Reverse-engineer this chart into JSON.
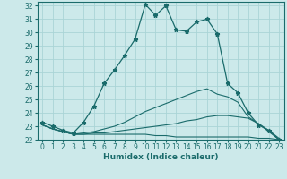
{
  "title": "",
  "xlabel": "Humidex (Indice chaleur)",
  "ylabel": "",
  "background_color": "#cce9ea",
  "grid_color": "#aad4d6",
  "line_color": "#1a6b6b",
  "xlim": [
    -0.5,
    23.5
  ],
  "ylim": [
    22,
    32.3
  ],
  "yticks": [
    22,
    23,
    24,
    25,
    26,
    27,
    28,
    29,
    30,
    31,
    32
  ],
  "xticks": [
    0,
    1,
    2,
    3,
    4,
    5,
    6,
    7,
    8,
    9,
    10,
    11,
    12,
    13,
    14,
    15,
    16,
    17,
    18,
    19,
    20,
    21,
    22,
    23
  ],
  "curves": [
    {
      "x": [
        0,
        1,
        2,
        3,
        4,
        5,
        6,
        7,
        8,
        9,
        10,
        11,
        12,
        13,
        14,
        15,
        16,
        17,
        18,
        19,
        20,
        21,
        22,
        23
      ],
      "y": [
        23.3,
        23.0,
        22.7,
        22.5,
        23.3,
        24.5,
        26.2,
        27.2,
        28.3,
        29.5,
        32.1,
        31.3,
        32.0,
        30.2,
        30.1,
        30.8,
        31.0,
        29.9,
        26.2,
        25.5,
        24.0,
        23.1,
        22.7,
        22.0
      ],
      "has_markers": true
    },
    {
      "x": [
        0,
        1,
        2,
        3,
        4,
        5,
        6,
        7,
        8,
        9,
        10,
        11,
        12,
        13,
        14,
        15,
        16,
        17,
        18,
        19,
        20,
        21,
        22,
        23
      ],
      "y": [
        23.1,
        22.8,
        22.6,
        22.4,
        22.5,
        22.6,
        22.8,
        23.0,
        23.3,
        23.7,
        24.1,
        24.4,
        24.7,
        25.0,
        25.3,
        25.6,
        25.8,
        25.4,
        25.2,
        24.8,
        23.7,
        23.2,
        22.7,
        22.1
      ],
      "has_markers": false
    },
    {
      "x": [
        0,
        1,
        2,
        3,
        4,
        5,
        6,
        7,
        8,
        9,
        10,
        11,
        12,
        13,
        14,
        15,
        16,
        17,
        18,
        19,
        20,
        21,
        22,
        23
      ],
      "y": [
        23.1,
        22.8,
        22.6,
        22.4,
        22.4,
        22.4,
        22.4,
        22.4,
        22.4,
        22.4,
        22.4,
        22.3,
        22.3,
        22.2,
        22.2,
        22.2,
        22.2,
        22.2,
        22.2,
        22.2,
        22.2,
        22.1,
        22.1,
        22.0
      ],
      "has_markers": false
    },
    {
      "x": [
        0,
        1,
        2,
        3,
        4,
        5,
        6,
        7,
        8,
        9,
        10,
        11,
        12,
        13,
        14,
        15,
        16,
        17,
        18,
        19,
        20,
        21,
        22,
        23
      ],
      "y": [
        23.1,
        22.8,
        22.6,
        22.4,
        22.4,
        22.5,
        22.5,
        22.6,
        22.7,
        22.8,
        22.9,
        23.0,
        23.1,
        23.2,
        23.4,
        23.5,
        23.7,
        23.8,
        23.8,
        23.7,
        23.6,
        23.2,
        22.6,
        22.0
      ],
      "has_markers": false
    }
  ]
}
